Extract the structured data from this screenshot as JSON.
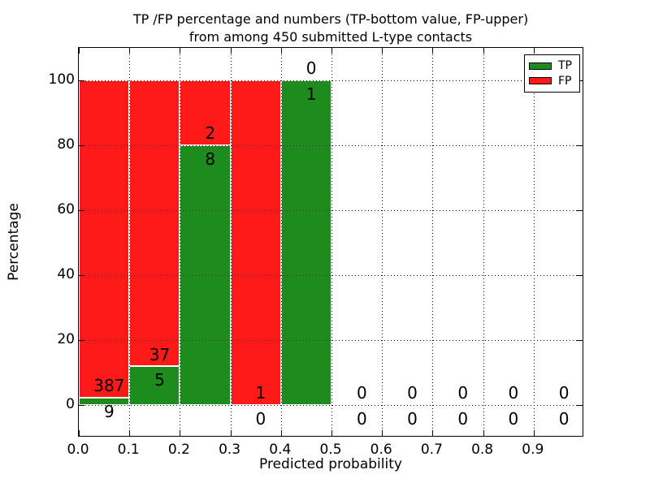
{
  "title": {
    "line1": "TP /FP percentage and numbers (TP-bottom value, FP-upper)",
    "line2": "from among 450 submitted L-type contacts"
  },
  "axes": {
    "xlabel": "Predicted probability",
    "ylabel": "Percentage"
  },
  "legend": {
    "items": [
      {
        "label": "TP",
        "color": "tp"
      },
      {
        "label": "FP",
        "color": "fp"
      }
    ]
  },
  "colors": {
    "tp": "#1e8b1e",
    "fp": "#ff1a1a",
    "axis": "#000000",
    "grid": "#000000",
    "background": "#ffffff",
    "text": "#000000"
  },
  "chart_data": {
    "type": "bar",
    "stacked": true,
    "title": "TP /FP percentage and numbers (TP-bottom value, FP-upper)\nfrom among 450 submitted L-type contacts",
    "xlabel": "Predicted probability",
    "ylabel": "Percentage",
    "xlim": [
      0,
      1.0
    ],
    "ylim": [
      -10,
      110
    ],
    "grid": true,
    "legend_position": "upper right",
    "series": [
      {
        "name": "TP",
        "color": "tp"
      },
      {
        "name": "FP",
        "color": "fp"
      }
    ],
    "xticks": {
      "values": [
        0.0,
        0.1,
        0.2,
        0.3,
        0.4,
        0.5,
        0.6,
        0.7,
        0.8,
        0.9
      ],
      "labels": [
        "0.0",
        "0.1",
        "0.2",
        "0.3",
        "0.4",
        "0.5",
        "0.6",
        "0.7",
        "0.8",
        "0.9"
      ]
    },
    "yticks": {
      "values": [
        0,
        20,
        40,
        60,
        80,
        100
      ],
      "labels": [
        "0",
        "20",
        "40",
        "60",
        "80",
        "100"
      ]
    },
    "bins": [
      {
        "range": [
          0.0,
          0.1
        ],
        "tp_count": 9,
        "fp_count": 387,
        "tp_pct": 2.27,
        "fp_pct": 97.73
      },
      {
        "range": [
          0.1,
          0.2
        ],
        "tp_count": 5,
        "fp_count": 37,
        "tp_pct": 11.9,
        "fp_pct": 88.1
      },
      {
        "range": [
          0.2,
          0.3
        ],
        "tp_count": 8,
        "fp_count": 2,
        "tp_pct": 80.0,
        "fp_pct": 20.0
      },
      {
        "range": [
          0.3,
          0.4
        ],
        "tp_count": 0,
        "fp_count": 1,
        "tp_pct": 0.0,
        "fp_pct": 100.0
      },
      {
        "range": [
          0.4,
          0.5
        ],
        "tp_count": 1,
        "fp_count": 0,
        "tp_pct": 100.0,
        "fp_pct": 0.0
      },
      {
        "range": [
          0.5,
          0.6
        ],
        "tp_count": 0,
        "fp_count": 0,
        "tp_pct": 0.0,
        "fp_pct": 0.0
      },
      {
        "range": [
          0.6,
          0.7
        ],
        "tp_count": 0,
        "fp_count": 0,
        "tp_pct": 0.0,
        "fp_pct": 0.0
      },
      {
        "range": [
          0.7,
          0.8
        ],
        "tp_count": 0,
        "fp_count": 0,
        "tp_pct": 0.0,
        "fp_pct": 0.0
      },
      {
        "range": [
          0.8,
          0.9
        ],
        "tp_count": 0,
        "fp_count": 0,
        "tp_pct": 0.0,
        "fp_pct": 0.0
      },
      {
        "range": [
          0.9,
          1.0
        ],
        "tp_count": 0,
        "fp_count": 0,
        "tp_pct": 0.0,
        "fp_pct": 0.0
      }
    ]
  }
}
